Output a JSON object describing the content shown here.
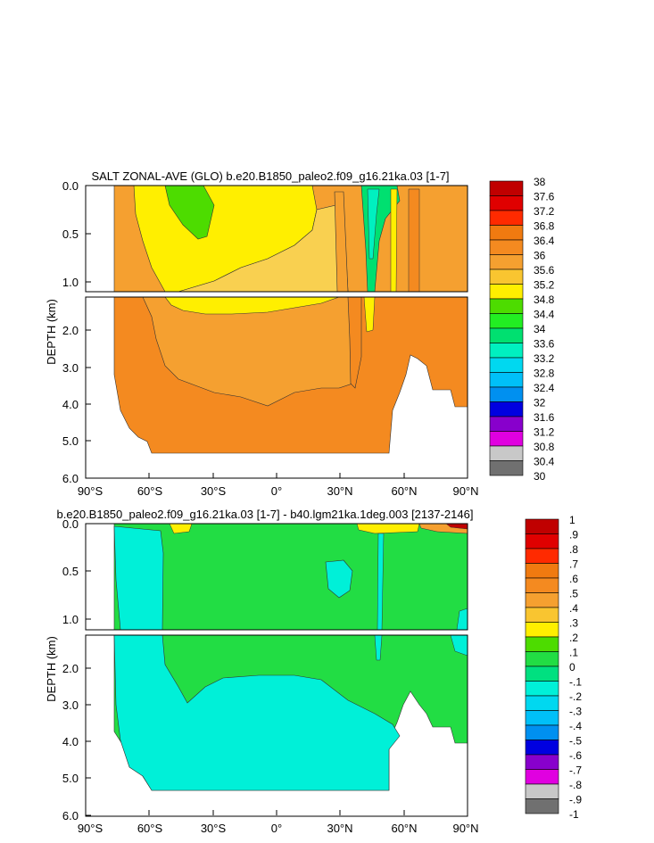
{
  "chart_data": [
    {
      "type": "heatmap",
      "title": "SALT ZONAL-AVE (GLO) b.e20.B1850_paleo2.f09_g16.21ka.03 [1-7]",
      "ylabel": "DEPTH (km)",
      "xlim": [
        -90,
        90
      ],
      "ylim": [
        6.0,
        0.0
      ],
      "x_ticks": [
        "90°S",
        "60°S",
        "30°S",
        "0°",
        "30°N",
        "60°N",
        "90°N"
      ],
      "y_ticks_upper": [
        "0.0",
        "0.5",
        "1.0"
      ],
      "y_ticks_lower": [
        "2.0",
        "3.0",
        "4.0",
        "5.0",
        "6.0"
      ],
      "colorbar_labels": [
        "38",
        "37.6",
        "37.2",
        "36.8",
        "36.4",
        "36",
        "35.6",
        "35.2",
        "34.8",
        "34.4",
        "34",
        "33.6",
        "33.2",
        "32.8",
        "32.4",
        "32",
        "31.6",
        "31.2",
        "30.8",
        "30.4",
        "30"
      ],
      "colorbar_colors": [
        "#c00000",
        "#e00000",
        "#ff2a00",
        "#f07a10",
        "#f48a20",
        "#f5a030",
        "#f9c530",
        "#ffef00",
        "#4ddc00",
        "#22ee22",
        "#00e070",
        "#00f0c0",
        "#00d8f0",
        "#00c0f8",
        "#0090f0",
        "#0000e0",
        "#8800cc",
        "#e000e0",
        "#c8c8c8",
        "#707070"
      ]
    },
    {
      "type": "heatmap",
      "title": "b.e20.B1850_paleo2.f09_g16.21ka.03 [1-7] - b40.lgm21ka.1deg.003 [2137-2146]",
      "ylabel": "DEPTH (km)",
      "xlim": [
        -90,
        90
      ],
      "ylim": [
        6.0,
        0.0
      ],
      "x_ticks": [
        "90°S",
        "60°S",
        "30°S",
        "0°",
        "30°N",
        "60°N",
        "90°N"
      ],
      "y_ticks_upper": [
        "0.0",
        "0.5",
        "1.0"
      ],
      "y_ticks_lower": [
        "2.0",
        "3.0",
        "4.0",
        "5.0",
        "6.0"
      ],
      "colorbar_labels": [
        "1",
        ".9",
        ".8",
        ".7",
        ".6",
        ".5",
        ".4",
        ".3",
        ".2",
        ".1",
        "0",
        "-.1",
        "-.2",
        "-.3",
        "-.4",
        "-.5",
        "-.6",
        "-.7",
        "-.8",
        "-.9",
        "-1"
      ],
      "colorbar_colors": [
        "#c00000",
        "#e00000",
        "#ff2a00",
        "#f07a10",
        "#f48a20",
        "#f5a030",
        "#f9c530",
        "#ffef00",
        "#4ddc00",
        "#22dd44",
        "#00e080",
        "#00f0d8",
        "#00d8f0",
        "#00c0f8",
        "#0090f0",
        "#0000e0",
        "#8800cc",
        "#e000e0",
        "#c8c8c8",
        "#707070"
      ]
    }
  ]
}
